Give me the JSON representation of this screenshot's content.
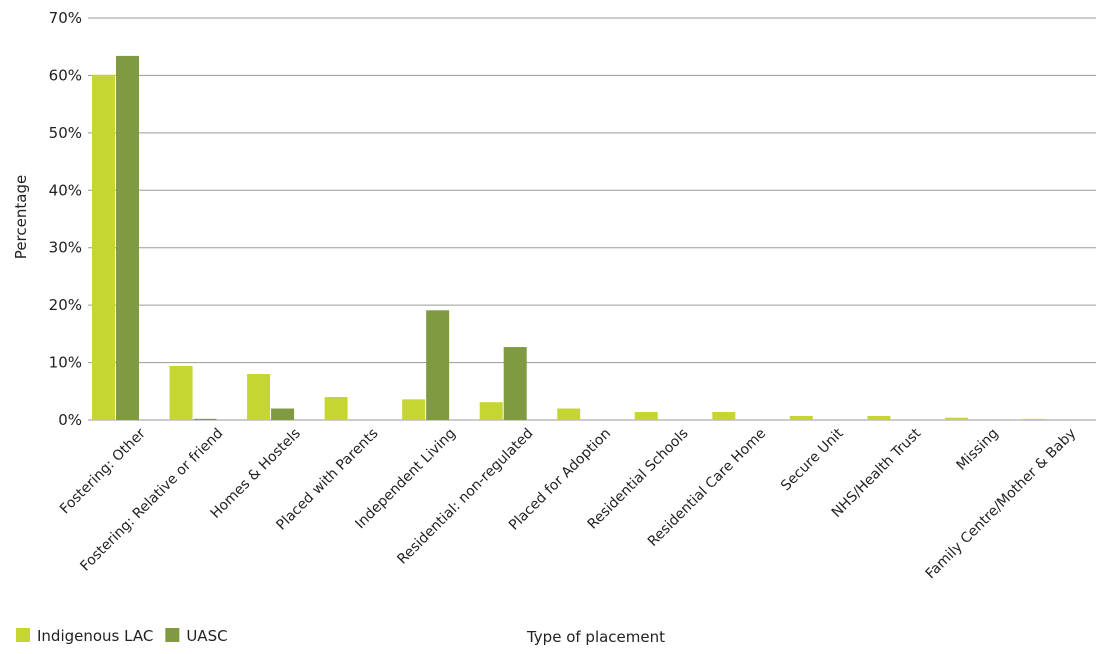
{
  "chart_data": {
    "type": "bar",
    "xlabel": "Type of placement",
    "ylabel": "Percentage",
    "ylim": [
      0,
      70
    ],
    "yticks": [
      0,
      10,
      20,
      30,
      40,
      50,
      60,
      70
    ],
    "ytick_labels": [
      "0%",
      "10%",
      "20%",
      "30%",
      "40%",
      "50%",
      "60%",
      "70%"
    ],
    "grid": true,
    "legend_position": "bottom-left",
    "categories": [
      "Fostering: Other",
      "Fostering: Relative or friend",
      "Homes & Hostels",
      "Placed with Parents",
      "Independent Living",
      "Residential: non-regulated",
      "Placed for Adoption",
      "Residential Schools",
      "Residential Care Home",
      "Secure Unit",
      "NHS/Health Trust",
      "Missing",
      "Family Centre/Mother & Baby"
    ],
    "series": [
      {
        "name": "Indigenous LAC",
        "color": "#c5d633",
        "values": [
          60.1,
          9.4,
          8.0,
          4.0,
          3.6,
          3.1,
          2.0,
          1.4,
          1.4,
          0.7,
          0.7,
          0.4,
          0.2
        ]
      },
      {
        "name": "UASC",
        "color": "#7f9a41",
        "values": [
          63.4,
          0.2,
          2.0,
          0,
          19.1,
          12.7,
          0,
          0,
          0,
          0,
          0,
          0,
          0
        ]
      }
    ]
  }
}
